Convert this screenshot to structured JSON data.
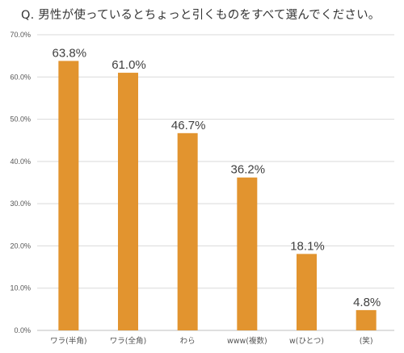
{
  "title": "Q. 男性が使っているとちょっと引くものをすべて選んでください。",
  "colors": {
    "bar": "#E2942F",
    "grid": "#D9D9D9",
    "axis": "#BFBFBF"
  },
  "chart_data": {
    "type": "bar",
    "title": "Q. 男性が使っているとちょっと引くものをすべて選んでください。",
    "xlabel": "",
    "ylabel": "",
    "categories": [
      "ワラ(半角)",
      "ワラ(全角)",
      "わら",
      "www(複数)",
      "w(ひとつ)",
      "(笑)"
    ],
    "values": [
      63.8,
      61.0,
      46.7,
      36.2,
      18.1,
      4.8
    ],
    "data_labels": [
      "63.8%",
      "61.0%",
      "46.7%",
      "36.2%",
      "18.1%",
      "4.8%"
    ],
    "ylim": [
      0,
      70
    ],
    "yticks": [
      0,
      10,
      20,
      30,
      40,
      50,
      60,
      70
    ],
    "ytick_labels": [
      "0.0%",
      "10.0%",
      "20.0%",
      "30.0%",
      "40.0%",
      "50.0%",
      "60.0%",
      "70.0%"
    ],
    "grid": true,
    "legend": "none"
  }
}
